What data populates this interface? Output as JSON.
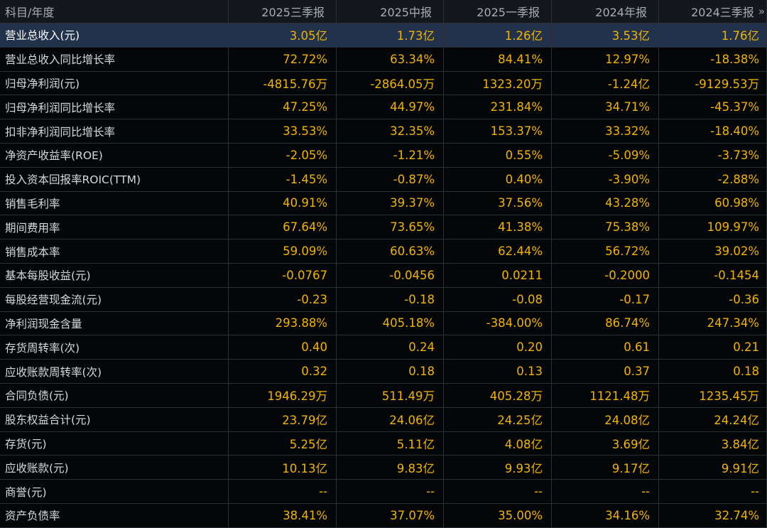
{
  "header": {
    "item": "科目/年度",
    "periods": [
      "2025三季报",
      "2025中报",
      "2025一季报",
      "2024年报",
      "2024三季报"
    ],
    "more_icon": "double-chevron-right"
  },
  "rows": [
    {
      "label": "营业总收入(元)",
      "values": [
        "3.05亿",
        "1.73亿",
        "1.26亿",
        "3.53亿",
        "1.76亿"
      ]
    },
    {
      "label": "营业总收入同比增长率",
      "values": [
        "72.72%",
        "63.34%",
        "84.41%",
        "12.97%",
        "-18.38%"
      ]
    },
    {
      "label": "归母净利润(元)",
      "values": [
        "-4815.76万",
        "-2864.05万",
        "1323.20万",
        "-1.24亿",
        "-9129.53万"
      ]
    },
    {
      "label": "归母净利润同比增长率",
      "values": [
        "47.25%",
        "44.97%",
        "231.84%",
        "34.71%",
        "-45.37%"
      ]
    },
    {
      "label": "扣非净利润同比增长率",
      "values": [
        "33.53%",
        "32.35%",
        "153.37%",
        "33.32%",
        "-18.40%"
      ]
    },
    {
      "label": "净资产收益率(ROE)",
      "values": [
        "-2.05%",
        "-1.21%",
        "0.55%",
        "-5.09%",
        "-3.73%"
      ]
    },
    {
      "label": "投入资本回报率ROIC(TTM)",
      "values": [
        "-1.45%",
        "-0.87%",
        "0.40%",
        "-3.90%",
        "-2.88%"
      ]
    },
    {
      "label": "销售毛利率",
      "values": [
        "40.91%",
        "39.37%",
        "37.56%",
        "43.28%",
        "60.98%"
      ]
    },
    {
      "label": "期间费用率",
      "values": [
        "67.64%",
        "73.65%",
        "41.38%",
        "75.38%",
        "109.97%"
      ]
    },
    {
      "label": "销售成本率",
      "values": [
        "59.09%",
        "60.63%",
        "62.44%",
        "56.72%",
        "39.02%"
      ]
    },
    {
      "label": "基本每股收益(元)",
      "values": [
        "-0.0767",
        "-0.0456",
        "0.0211",
        "-0.2000",
        "-0.1454"
      ]
    },
    {
      "label": "每股经营现金流(元)",
      "values": [
        "-0.23",
        "-0.18",
        "-0.08",
        "-0.17",
        "-0.36"
      ]
    },
    {
      "label": "净利润现金含量",
      "values": [
        "293.88%",
        "405.18%",
        "-384.00%",
        "86.74%",
        "247.34%"
      ]
    },
    {
      "label": "存货周转率(次)",
      "values": [
        "0.40",
        "0.24",
        "0.20",
        "0.61",
        "0.21"
      ]
    },
    {
      "label": "应收账款周转率(次)",
      "values": [
        "0.32",
        "0.18",
        "0.13",
        "0.37",
        "0.18"
      ]
    },
    {
      "label": "合同负债(元)",
      "values": [
        "1946.29万",
        "511.49万",
        "405.28万",
        "1121.48万",
        "1235.45万"
      ]
    },
    {
      "label": "股东权益合计(元)",
      "values": [
        "23.79亿",
        "24.06亿",
        "24.25亿",
        "24.08亿",
        "24.24亿"
      ]
    },
    {
      "label": "存货(元)",
      "values": [
        "5.25亿",
        "5.11亿",
        "4.08亿",
        "3.69亿",
        "3.84亿"
      ]
    },
    {
      "label": "应收账款(元)",
      "values": [
        "10.13亿",
        "9.83亿",
        "9.93亿",
        "9.17亿",
        "9.91亿"
      ]
    },
    {
      "label": "商誉(元)",
      "values": [
        "--",
        "--",
        "--",
        "--",
        "--"
      ]
    },
    {
      "label": "资产负债率",
      "values": [
        "38.41%",
        "37.07%",
        "35.00%",
        "34.16%",
        "32.74%"
      ]
    }
  ],
  "highlighted_row": 0,
  "colors": {
    "value_text": "#f0b400",
    "label_text": "#d6d9dd",
    "header_bg": "#14171b",
    "highlight_bg": "#22324a",
    "background": "#050607"
  }
}
